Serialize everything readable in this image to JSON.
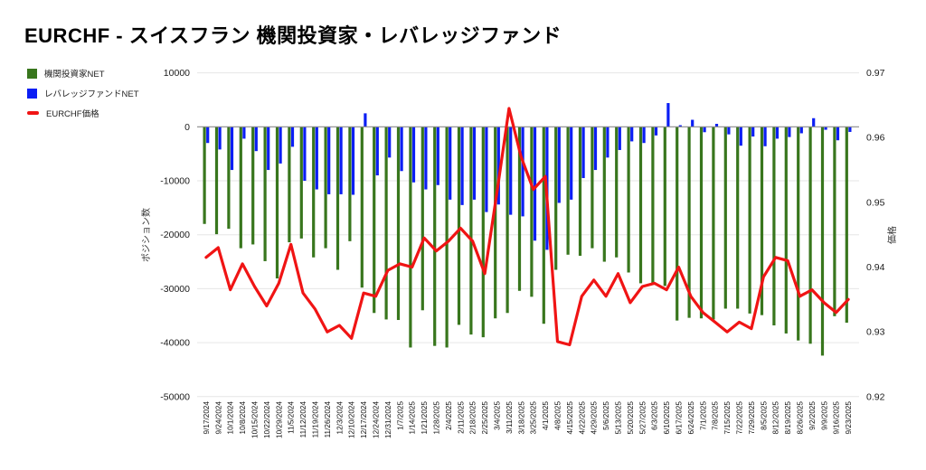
{
  "title": "EURCHF - スイスフラン 機関投資家・レバレッジファンド",
  "legend": [
    {
      "label": "機関投資家NET",
      "color": "#38761d",
      "marker": "square"
    },
    {
      "label": "レバレッジファンドNET",
      "color": "#0b1ef4",
      "marker": "square"
    },
    {
      "label": "EURCHF価格",
      "color": "#f01414",
      "marker": "line"
    }
  ],
  "chart_data": {
    "type": "bar",
    "subtype": "grouped-bar-with-line-combo",
    "title": "EURCHF - スイスフラン 機関投資家・レバレッジファンド",
    "categories": [
      "9/17/2024",
      "9/24/2024",
      "10/1/2024",
      "10/8/2024",
      "10/15/2024",
      "10/22/2024",
      "10/29/2024",
      "11/5/2024",
      "11/12/2024",
      "11/19/2024",
      "11/26/2024",
      "12/3/2024",
      "12/10/2024",
      "12/17/2024",
      "12/24/2024",
      "12/31/2024",
      "1/7/2025",
      "1/14/2025",
      "1/21/2025",
      "1/28/2025",
      "2/4/2025",
      "2/11/2025",
      "2/18/2025",
      "2/25/2025",
      "3/4/2025",
      "3/11/2025",
      "3/18/2025",
      "3/25/2025",
      "4/1/2025",
      "4/8/2025",
      "4/15/2025",
      "4/22/2025",
      "4/29/2025",
      "5/6/2025",
      "5/13/2025",
      "5/20/2025",
      "5/27/2025",
      "6/3/2025",
      "6/10/2025",
      "6/17/2025",
      "6/24/2025",
      "7/1/2025",
      "7/8/2025",
      "7/15/2025",
      "7/22/2025",
      "7/29/2025",
      "8/5/2025",
      "8/12/2025",
      "8/19/2025",
      "8/26/2025",
      "9/2/2025",
      "9/9/2025",
      "9/16/2025",
      "9/23/2025"
    ],
    "series": [
      {
        "name": "機関投資家NET",
        "type": "bar",
        "axis": "left",
        "color": "#38761d",
        "values": [
          -18000,
          -19900,
          -18900,
          -22500,
          -21800,
          -24900,
          -28100,
          -21400,
          -20700,
          -24200,
          -22500,
          -26500,
          -21200,
          -29800,
          -34500,
          -35700,
          -35800,
          -40900,
          -34000,
          -40600,
          -40900,
          -36700,
          -38500,
          -39000,
          -35500,
          -34500,
          -30400,
          -31500,
          -36500,
          -26500,
          -23700,
          -23900,
          -22500,
          -25000,
          -24200,
          -27000,
          -29000,
          -29000,
          -29500,
          -35900,
          -35400,
          -35500,
          -35700,
          -33700,
          -33700,
          -34600,
          -34900,
          -36800,
          -38300,
          -39600,
          -40200,
          -42400,
          -35100,
          -36300
        ]
      },
      {
        "name": "レバレッジファンドNET",
        "type": "bar",
        "axis": "left",
        "color": "#0b1ef4",
        "values": [
          -3000,
          -4200,
          -8000,
          -2200,
          -4500,
          -8000,
          -6800,
          -3700,
          -10000,
          -11600,
          -12500,
          -12500,
          -12600,
          2500,
          -9000,
          -5700,
          -8200,
          -10300,
          -11600,
          -10800,
          -13500,
          -14500,
          -13500,
          -15800,
          -14400,
          -16300,
          -16600,
          -21100,
          -22800,
          -14100,
          -13500,
          -9500,
          -8000,
          -5700,
          -4300,
          -2700,
          -3000,
          -1600,
          4400,
          300,
          1300,
          -1000,
          550,
          -1400,
          -3500,
          -1800,
          -3600,
          -2200,
          -1900,
          -1200,
          1600,
          -550,
          -2500,
          -950
        ]
      },
      {
        "name": "EURCHF価格",
        "type": "line",
        "axis": "right",
        "color": "#f01414",
        "values": [
          0.9415,
          0.943,
          0.9365,
          0.9405,
          0.937,
          0.934,
          0.9375,
          0.9435,
          0.936,
          0.9335,
          0.93,
          0.931,
          0.929,
          0.936,
          0.9355,
          0.9395,
          0.9405,
          0.94,
          0.9445,
          0.9425,
          0.944,
          0.946,
          0.944,
          0.939,
          0.9515,
          0.9645,
          0.957,
          0.952,
          0.954,
          0.9285,
          0.928,
          0.9355,
          0.938,
          0.9355,
          0.939,
          0.9345,
          0.937,
          0.9375,
          0.9365,
          0.94,
          0.9355,
          0.933,
          0.9315,
          0.93,
          0.9315,
          0.9305,
          0.9385,
          0.9415,
          0.941,
          0.9355,
          0.9365,
          0.9345,
          0.933,
          0.935
        ]
      }
    ],
    "y_left": {
      "title": "ポジション数",
      "min": -50000,
      "max": 10000,
      "ticks": [
        10000,
        0,
        -10000,
        -20000,
        -30000,
        -40000,
        -50000
      ]
    },
    "y_right": {
      "title": "価格",
      "min": 0.92,
      "max": 0.97,
      "ticks": [
        0.97,
        0.96,
        0.95,
        0.94,
        0.93,
        0.92
      ]
    },
    "grid": true,
    "legend_position": "top-left",
    "colors": {
      "grid": "#e6e6e6",
      "zero_line": "#8a8a8a",
      "tick_text": "#1a1a1a",
      "background": "#ffffff"
    }
  }
}
